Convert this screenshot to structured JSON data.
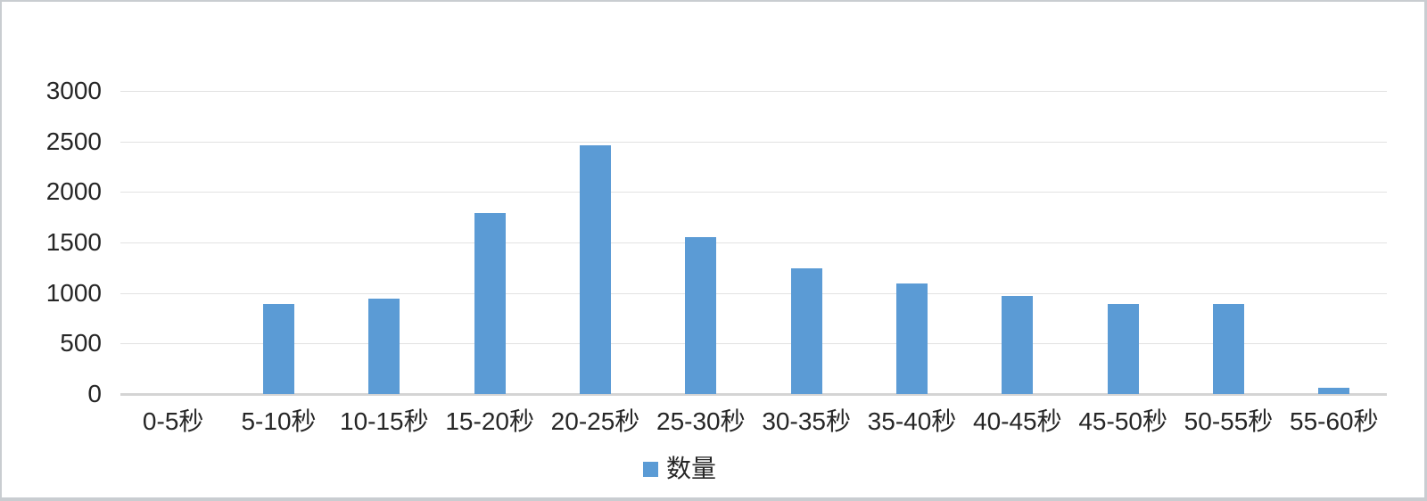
{
  "chart_data": {
    "type": "bar",
    "title": "",
    "categories": [
      "0-5秒",
      "5-10秒",
      "10-15秒",
      "15-20秒",
      "20-25秒",
      "25-30秒",
      "30-35秒",
      "35-40秒",
      "40-45秒",
      "45-50秒",
      "50-55秒",
      "55-60秒"
    ],
    "series": [
      {
        "name": "数量",
        "values": [
          0,
          890,
          945,
          1790,
          2460,
          1555,
          1240,
          1095,
          970,
          895,
          890,
          60
        ]
      }
    ],
    "xlabel": "",
    "ylabel": "",
    "ylim": [
      0,
      3000
    ],
    "yticks": [
      0,
      500,
      1000,
      1500,
      2000,
      2500,
      3000
    ],
    "grid": true,
    "legend_position": "bottom",
    "bar_color": "#5B9BD5",
    "gridline_color": "#e2e2e2",
    "axis_line_color": "#d4d4d4",
    "text_color": "#262626",
    "background_color": "#ffffff"
  }
}
